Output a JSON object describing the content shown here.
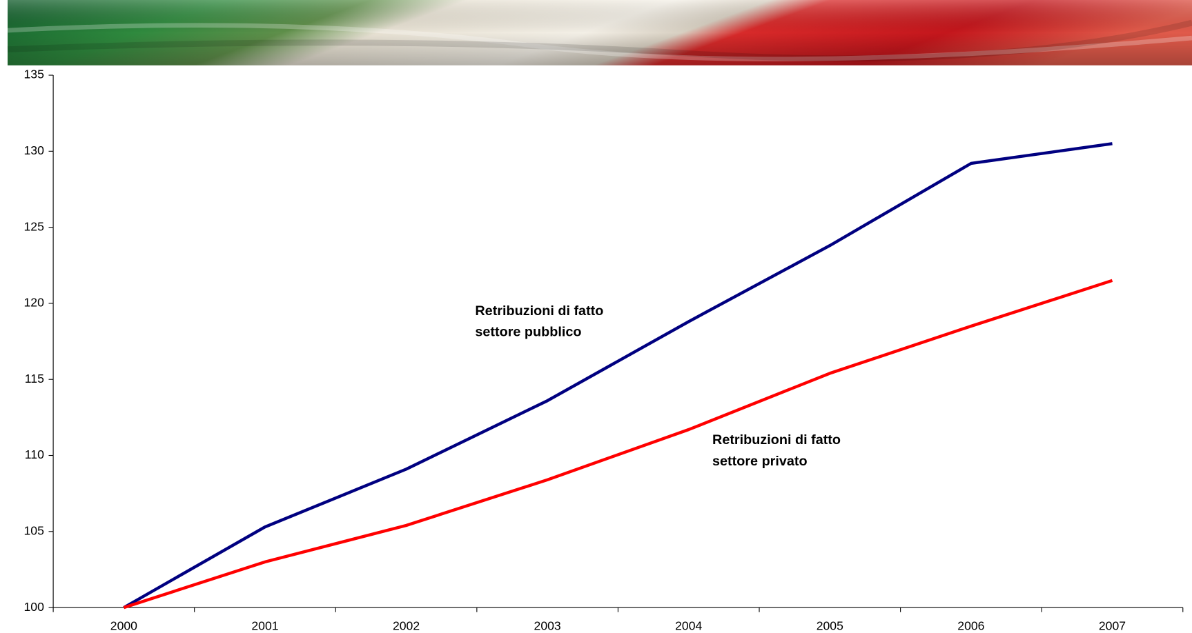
{
  "chart_data": {
    "type": "line",
    "categories": [
      "2000",
      "2001",
      "2002",
      "2003",
      "2004",
      "2005",
      "2006",
      "2007"
    ],
    "series": [
      {
        "color": "#000080",
        "values": [
          100,
          105.3,
          109.1,
          113.6,
          118.8,
          123.8,
          129.2,
          130.5
        ]
      },
      {
        "color": "#ff0000",
        "values": [
          100,
          103.0,
          105.4,
          108.4,
          111.7,
          115.4,
          118.5,
          121.5
        ]
      }
    ],
    "annotations": [
      [
        "Retribuzioni di fatto",
        "settore pubblico"
      ],
      [
        "Retribuzioni di fatto",
        "settore privato"
      ]
    ],
    "ylim": [
      100,
      135
    ],
    "yticks": [
      100,
      105,
      110,
      115,
      120,
      125,
      130,
      135
    ],
    "grid": false
  }
}
